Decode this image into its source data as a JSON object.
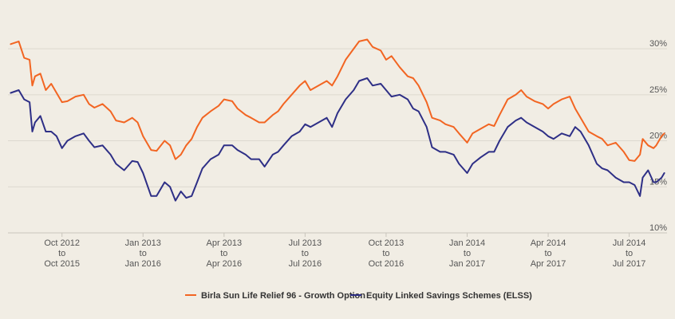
{
  "chart_data": {
    "type": "line",
    "title": "",
    "xlabel": "",
    "ylabel": "",
    "ylim": [
      10,
      32
    ],
    "y_ticks": [
      {
        "value": 30,
        "label": "30%"
      },
      {
        "value": 25,
        "label": "25%"
      },
      {
        "value": 20,
        "label": "20%"
      },
      {
        "value": 15,
        "label": "15%"
      },
      {
        "value": 10,
        "label": "10%"
      }
    ],
    "x_ticks": [
      {
        "value": 1,
        "lines": [
          "Oct 2012",
          "to",
          "Oct 2015"
        ]
      },
      {
        "value": 4,
        "lines": [
          "Jan 2013",
          "to",
          "Jan 2016"
        ]
      },
      {
        "value": 7,
        "lines": [
          "Apr 2013",
          "to",
          "Apr 2016"
        ]
      },
      {
        "value": 10,
        "lines": [
          "Jul 2013",
          "to",
          "Jul 2016"
        ]
      },
      {
        "value": 13,
        "lines": [
          "Oct 2013",
          "to",
          "Oct 2016"
        ]
      },
      {
        "value": 16,
        "lines": [
          "Jan 2014",
          "to",
          "Jan 2017"
        ]
      },
      {
        "value": 19,
        "lines": [
          "Apr 2014",
          "to",
          "Apr 2017"
        ]
      },
      {
        "value": 22,
        "lines": [
          "Jul 2014",
          "to",
          "Jul 2017"
        ]
      }
    ],
    "grid": true,
    "legend_position": "bottom",
    "series": [
      {
        "name": "Birla Sun Life Relief 96 - Growth Option",
        "color": "#f26522",
        "points": [
          [
            -0.9,
            30.5
          ],
          [
            -0.6,
            30.8
          ],
          [
            -0.4,
            29.0
          ],
          [
            -0.2,
            28.8
          ],
          [
            -0.1,
            26.0
          ],
          [
            0.0,
            27.0
          ],
          [
            0.2,
            27.3
          ],
          [
            0.4,
            25.5
          ],
          [
            0.6,
            26.2
          ],
          [
            0.8,
            25.2
          ],
          [
            1.0,
            24.2
          ],
          [
            1.2,
            24.3
          ],
          [
            1.5,
            24.8
          ],
          [
            1.8,
            25.0
          ],
          [
            2.0,
            24.0
          ],
          [
            2.2,
            23.6
          ],
          [
            2.5,
            24.0
          ],
          [
            2.8,
            23.2
          ],
          [
            3.0,
            22.2
          ],
          [
            3.3,
            22.0
          ],
          [
            3.6,
            22.5
          ],
          [
            3.8,
            22.0
          ],
          [
            4.0,
            20.5
          ],
          [
            4.3,
            19.0
          ],
          [
            4.5,
            18.9
          ],
          [
            4.8,
            20.0
          ],
          [
            5.0,
            19.5
          ],
          [
            5.2,
            18.0
          ],
          [
            5.4,
            18.5
          ],
          [
            5.6,
            19.5
          ],
          [
            5.8,
            20.2
          ],
          [
            6.0,
            21.5
          ],
          [
            6.2,
            22.5
          ],
          [
            6.5,
            23.2
          ],
          [
            6.8,
            23.8
          ],
          [
            7.0,
            24.5
          ],
          [
            7.3,
            24.3
          ],
          [
            7.5,
            23.5
          ],
          [
            7.8,
            22.8
          ],
          [
            8.0,
            22.5
          ],
          [
            8.3,
            22.0
          ],
          [
            8.5,
            22.0
          ],
          [
            8.8,
            22.8
          ],
          [
            9.0,
            23.2
          ],
          [
            9.2,
            24.0
          ],
          [
            9.5,
            25.0
          ],
          [
            9.8,
            26.0
          ],
          [
            10.0,
            26.5
          ],
          [
            10.2,
            25.5
          ],
          [
            10.5,
            26.0
          ],
          [
            10.8,
            26.5
          ],
          [
            11.0,
            26.0
          ],
          [
            11.2,
            27.0
          ],
          [
            11.5,
            28.8
          ],
          [
            11.8,
            30.0
          ],
          [
            12.0,
            30.8
          ],
          [
            12.3,
            31.0
          ],
          [
            12.5,
            30.2
          ],
          [
            12.8,
            29.8
          ],
          [
            13.0,
            28.8
          ],
          [
            13.2,
            29.2
          ],
          [
            13.5,
            28.0
          ],
          [
            13.8,
            27.0
          ],
          [
            14.0,
            26.8
          ],
          [
            14.2,
            26.0
          ],
          [
            14.5,
            24.2
          ],
          [
            14.7,
            22.5
          ],
          [
            15.0,
            22.2
          ],
          [
            15.2,
            21.8
          ],
          [
            15.5,
            21.5
          ],
          [
            15.7,
            20.8
          ],
          [
            16.0,
            19.8
          ],
          [
            16.2,
            20.8
          ],
          [
            16.5,
            21.3
          ],
          [
            16.8,
            21.8
          ],
          [
            17.0,
            21.6
          ],
          [
            17.2,
            22.8
          ],
          [
            17.5,
            24.5
          ],
          [
            17.8,
            25.0
          ],
          [
            18.0,
            25.5
          ],
          [
            18.2,
            24.8
          ],
          [
            18.5,
            24.3
          ],
          [
            18.8,
            24.0
          ],
          [
            19.0,
            23.5
          ],
          [
            19.2,
            24.0
          ],
          [
            19.5,
            24.5
          ],
          [
            19.8,
            24.8
          ],
          [
            20.0,
            23.5
          ],
          [
            20.2,
            22.5
          ],
          [
            20.5,
            21.0
          ],
          [
            20.8,
            20.5
          ],
          [
            21.0,
            20.2
          ],
          [
            21.2,
            19.5
          ],
          [
            21.5,
            19.8
          ],
          [
            21.8,
            18.8
          ],
          [
            22.0,
            17.9
          ],
          [
            22.2,
            17.8
          ],
          [
            22.4,
            18.5
          ],
          [
            22.5,
            20.2
          ],
          [
            22.7,
            19.5
          ],
          [
            22.9,
            19.2
          ],
          [
            23.0,
            19.5
          ],
          [
            23.2,
            20.5
          ],
          [
            23.3,
            20.8
          ]
        ]
      },
      {
        "name": "Equity Linked Savings Schemes (ELSS)",
        "color": "#2e2f86",
        "points": [
          [
            -0.9,
            25.2
          ],
          [
            -0.6,
            25.5
          ],
          [
            -0.4,
            24.5
          ],
          [
            -0.2,
            24.2
          ],
          [
            -0.1,
            21.0
          ],
          [
            0.0,
            22.0
          ],
          [
            0.2,
            22.7
          ],
          [
            0.4,
            21.0
          ],
          [
            0.6,
            21.0
          ],
          [
            0.8,
            20.5
          ],
          [
            1.0,
            19.2
          ],
          [
            1.2,
            20.0
          ],
          [
            1.5,
            20.5
          ],
          [
            1.8,
            20.8
          ],
          [
            2.0,
            20.0
          ],
          [
            2.2,
            19.3
          ],
          [
            2.5,
            19.5
          ],
          [
            2.8,
            18.5
          ],
          [
            3.0,
            17.5
          ],
          [
            3.3,
            16.8
          ],
          [
            3.6,
            17.8
          ],
          [
            3.8,
            17.7
          ],
          [
            4.0,
            16.5
          ],
          [
            4.3,
            14.0
          ],
          [
            4.5,
            14.0
          ],
          [
            4.8,
            15.5
          ],
          [
            5.0,
            15.0
          ],
          [
            5.2,
            13.5
          ],
          [
            5.4,
            14.5
          ],
          [
            5.6,
            13.8
          ],
          [
            5.8,
            14.0
          ],
          [
            6.0,
            15.5
          ],
          [
            6.2,
            17.0
          ],
          [
            6.5,
            18.0
          ],
          [
            6.8,
            18.5
          ],
          [
            7.0,
            19.5
          ],
          [
            7.3,
            19.5
          ],
          [
            7.5,
            19.0
          ],
          [
            7.8,
            18.5
          ],
          [
            8.0,
            18.0
          ],
          [
            8.3,
            18.0
          ],
          [
            8.5,
            17.2
          ],
          [
            8.8,
            18.5
          ],
          [
            9.0,
            18.8
          ],
          [
            9.2,
            19.5
          ],
          [
            9.5,
            20.5
          ],
          [
            9.8,
            21.0
          ],
          [
            10.0,
            21.8
          ],
          [
            10.2,
            21.5
          ],
          [
            10.5,
            22.0
          ],
          [
            10.8,
            22.5
          ],
          [
            11.0,
            21.5
          ],
          [
            11.2,
            23.0
          ],
          [
            11.5,
            24.5
          ],
          [
            11.8,
            25.5
          ],
          [
            12.0,
            26.5
          ],
          [
            12.3,
            26.8
          ],
          [
            12.5,
            26.0
          ],
          [
            12.8,
            26.2
          ],
          [
            13.0,
            25.5
          ],
          [
            13.2,
            24.8
          ],
          [
            13.5,
            25.0
          ],
          [
            13.8,
            24.5
          ],
          [
            14.0,
            23.5
          ],
          [
            14.2,
            23.2
          ],
          [
            14.5,
            21.5
          ],
          [
            14.7,
            19.3
          ],
          [
            15.0,
            18.8
          ],
          [
            15.2,
            18.8
          ],
          [
            15.5,
            18.5
          ],
          [
            15.7,
            17.5
          ],
          [
            16.0,
            16.5
          ],
          [
            16.2,
            17.5
          ],
          [
            16.5,
            18.2
          ],
          [
            16.8,
            18.8
          ],
          [
            17.0,
            18.8
          ],
          [
            17.2,
            20.0
          ],
          [
            17.5,
            21.5
          ],
          [
            17.8,
            22.2
          ],
          [
            18.0,
            22.5
          ],
          [
            18.2,
            22.0
          ],
          [
            18.5,
            21.5
          ],
          [
            18.8,
            21.0
          ],
          [
            19.0,
            20.5
          ],
          [
            19.2,
            20.2
          ],
          [
            19.5,
            20.8
          ],
          [
            19.8,
            20.5
          ],
          [
            20.0,
            21.5
          ],
          [
            20.2,
            21.0
          ],
          [
            20.5,
            19.5
          ],
          [
            20.8,
            17.5
          ],
          [
            21.0,
            17.0
          ],
          [
            21.2,
            16.8
          ],
          [
            21.5,
            16.0
          ],
          [
            21.8,
            15.5
          ],
          [
            22.0,
            15.5
          ],
          [
            22.2,
            15.2
          ],
          [
            22.4,
            14.0
          ],
          [
            22.5,
            16.0
          ],
          [
            22.7,
            16.8
          ],
          [
            22.9,
            15.5
          ],
          [
            23.0,
            15.5
          ],
          [
            23.2,
            16.0
          ],
          [
            23.3,
            16.5
          ]
        ]
      }
    ]
  }
}
